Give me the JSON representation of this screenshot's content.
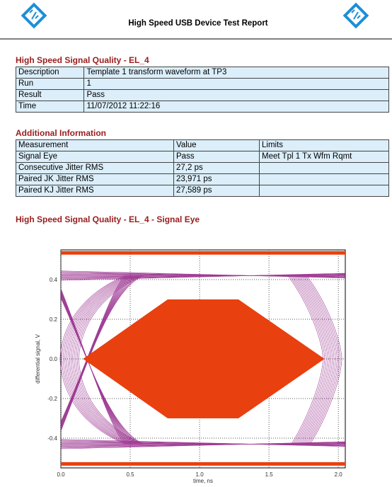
{
  "header": {
    "title": "High Speed USB Device Test Report"
  },
  "signal_quality": {
    "heading": "High Speed Signal Quality - EL_4",
    "rows": [
      [
        "Description",
        "Template 1 transform waveform at TP3"
      ],
      [
        "Run",
        "1"
      ],
      [
        "Result",
        "Pass"
      ],
      [
        "Time",
        "11/07/2012 11:22:16"
      ]
    ]
  },
  "additional_information": {
    "heading": "Additional Information",
    "columns": [
      "Measurement",
      "Value",
      "Limits"
    ],
    "rows": [
      [
        "Signal Eye",
        "Pass",
        "Meet Tpl 1 Tx Wfm Rqmt"
      ],
      [
        "Consecutive Jitter RMS",
        "27,2 ps",
        ""
      ],
      [
        "Paired JK Jitter RMS",
        "23,971 ps",
        ""
      ],
      [
        "Paired KJ Jitter RMS",
        "27,589 ps",
        ""
      ]
    ]
  },
  "signal_eye": {
    "heading": "High Speed Signal Quality - EL_4 - Signal Eye"
  },
  "chart_data": {
    "type": "eye",
    "x_label": "time, ns",
    "y_label": "differential signal, V",
    "xlim": [
      0,
      2.05
    ],
    "ylim": [
      -0.55,
      0.55
    ],
    "xticks": [
      {
        "value": 0,
        "label": "0.0"
      },
      0.5,
      {
        "value": 1,
        "label": "1.0"
      },
      1.5,
      {
        "value": 2,
        "label": "2.0"
      }
    ],
    "yticks": [
      0.4,
      0.2,
      {
        "value": 0,
        "label": "0.0"
      },
      -0.2,
      -0.4
    ],
    "grid": true,
    "mask_color": "#e8400f",
    "trace_color": "#8e1a82",
    "mask": {
      "x": [
        0.16,
        0.77,
        1.28,
        1.9,
        1.28,
        0.77
      ],
      "y": [
        0,
        0.3,
        0.3,
        0,
        -0.3,
        -0.3
      ]
    },
    "limit_lines": [
      0.535,
      -0.53
    ]
  }
}
